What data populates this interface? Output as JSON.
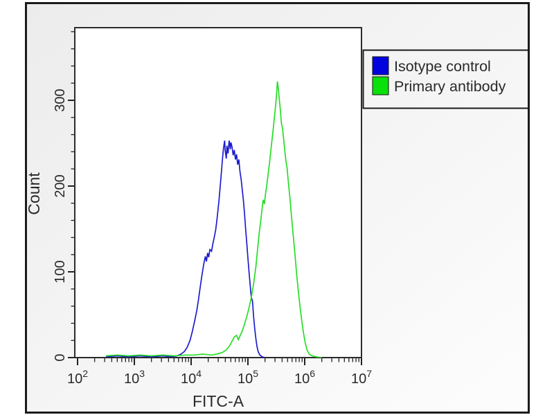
{
  "window": {
    "background_outer": "#ffffff",
    "background_inner_top": "#ececec",
    "background_inner_bottom": "#fdfdfd",
    "frame_color": "#1b1b1b",
    "plot_border_color": "#2b2b2b",
    "text_color": "#2a2a2a"
  },
  "legend": {
    "items": [
      {
        "label": "Isotype control",
        "swatch_color": "#0202df",
        "swatch_icon": "blue-square-swatch"
      },
      {
        "label": "Primary antibody",
        "swatch_color": "#0ae00a",
        "swatch_icon": "green-square-swatch"
      }
    ]
  },
  "chart_data": {
    "type": "line",
    "subtype": "flow-cytometry-overlay-histogram",
    "title": "",
    "xlabel": "FITC-A",
    "ylabel": "Count",
    "x_scale": "log10",
    "xlim_log10": [
      2,
      7
    ],
    "x_tick_label_base": "10",
    "x_tick_exponents": [
      2,
      3,
      4,
      5,
      6,
      7
    ],
    "x_minor_mantissas": [
      2,
      3,
      4,
      5,
      6,
      7,
      8,
      9
    ],
    "ylim": [
      0,
      385
    ],
    "y_major_ticks": [
      0,
      100,
      200,
      300
    ],
    "y_minor_step": 20,
    "grid": false,
    "legend_position": "outside-top-right",
    "series": [
      {
        "name": "Isotype control",
        "color": "#1c1ccd",
        "peak_log10x": 4.6,
        "peak_count": 253,
        "points": [
          [
            2.5,
            1
          ],
          [
            2.7,
            2
          ],
          [
            2.9,
            1
          ],
          [
            3.1,
            2
          ],
          [
            3.3,
            1
          ],
          [
            3.5,
            2
          ],
          [
            3.65,
            1
          ],
          [
            3.75,
            2
          ],
          [
            3.82,
            4
          ],
          [
            3.88,
            7
          ],
          [
            3.93,
            12
          ],
          [
            3.98,
            20
          ],
          [
            4.02,
            30
          ],
          [
            4.06,
            42
          ],
          [
            4.1,
            55
          ],
          [
            4.13,
            68
          ],
          [
            4.16,
            82
          ],
          [
            4.19,
            96
          ],
          [
            4.22,
            108
          ],
          [
            4.25,
            118
          ],
          [
            4.27,
            112
          ],
          [
            4.29,
            122
          ],
          [
            4.31,
            117
          ],
          [
            4.33,
            126
          ],
          [
            4.36,
            124
          ],
          [
            4.38,
            132
          ],
          [
            4.4,
            138
          ],
          [
            4.43,
            148
          ],
          [
            4.45,
            158
          ],
          [
            4.47,
            170
          ],
          [
            4.49,
            183
          ],
          [
            4.51,
            198
          ],
          [
            4.53,
            214
          ],
          [
            4.55,
            230
          ],
          [
            4.57,
            244
          ],
          [
            4.59,
            253
          ],
          [
            4.6,
            241
          ],
          [
            4.62,
            232
          ],
          [
            4.63,
            247
          ],
          [
            4.65,
            238
          ],
          [
            4.67,
            253
          ],
          [
            4.69,
            243
          ],
          [
            4.7,
            251
          ],
          [
            4.72,
            246
          ],
          [
            4.74,
            236
          ],
          [
            4.76,
            242
          ],
          [
            4.78,
            231
          ],
          [
            4.8,
            237
          ],
          [
            4.82,
            225
          ],
          [
            4.84,
            231
          ],
          [
            4.86,
            217
          ],
          [
            4.88,
            208
          ],
          [
            4.9,
            196
          ],
          [
            4.92,
            184
          ],
          [
            4.94,
            168
          ],
          [
            4.96,
            150
          ],
          [
            4.98,
            133
          ],
          [
            5.0,
            116
          ],
          [
            5.02,
            100
          ],
          [
            5.04,
            84
          ],
          [
            5.06,
            70
          ],
          [
            5.08,
            66
          ],
          [
            5.1,
            48
          ],
          [
            5.12,
            34
          ],
          [
            5.14,
            22
          ],
          [
            5.16,
            13
          ],
          [
            5.18,
            7
          ],
          [
            5.21,
            3
          ],
          [
            5.25,
            1
          ],
          [
            5.3,
            0
          ]
        ]
      },
      {
        "name": "Primary antibody",
        "color": "#27dd27",
        "peak_log10x": 5.52,
        "peak_count": 322,
        "points": [
          [
            2.5,
            2
          ],
          [
            2.7,
            3
          ],
          [
            2.9,
            2
          ],
          [
            3.1,
            3
          ],
          [
            3.3,
            2
          ],
          [
            3.5,
            3
          ],
          [
            3.7,
            2
          ],
          [
            3.9,
            3
          ],
          [
            4.05,
            3
          ],
          [
            4.2,
            4
          ],
          [
            4.35,
            3
          ],
          [
            4.45,
            4
          ],
          [
            4.55,
            6
          ],
          [
            4.62,
            9
          ],
          [
            4.68,
            14
          ],
          [
            4.72,
            19
          ],
          [
            4.76,
            24
          ],
          [
            4.8,
            26
          ],
          [
            4.83,
            21
          ],
          [
            4.86,
            25
          ],
          [
            4.9,
            31
          ],
          [
            4.94,
            39
          ],
          [
            4.98,
            48
          ],
          [
            5.02,
            58
          ],
          [
            5.06,
            70
          ],
          [
            5.1,
            86
          ],
          [
            5.14,
            106
          ],
          [
            5.17,
            126
          ],
          [
            5.2,
            146
          ],
          [
            5.23,
            162
          ],
          [
            5.25,
            174
          ],
          [
            5.27,
            184
          ],
          [
            5.29,
            179
          ],
          [
            5.31,
            191
          ],
          [
            5.33,
            200
          ],
          [
            5.35,
            211
          ],
          [
            5.38,
            227
          ],
          [
            5.4,
            239
          ],
          [
            5.42,
            251
          ],
          [
            5.44,
            263
          ],
          [
            5.46,
            276
          ],
          [
            5.48,
            289
          ],
          [
            5.5,
            303
          ],
          [
            5.51,
            313
          ],
          [
            5.52,
            322
          ],
          [
            5.535,
            314
          ],
          [
            5.55,
            303
          ],
          [
            5.57,
            290
          ],
          [
            5.59,
            273
          ],
          [
            5.61,
            267
          ],
          [
            5.63,
            254
          ],
          [
            5.65,
            241
          ],
          [
            5.67,
            229
          ],
          [
            5.69,
            221
          ],
          [
            5.71,
            206
          ],
          [
            5.74,
            186
          ],
          [
            5.77,
            163
          ],
          [
            5.8,
            141
          ],
          [
            5.83,
            119
          ],
          [
            5.86,
            96
          ],
          [
            5.89,
            76
          ],
          [
            5.92,
            58
          ],
          [
            5.95,
            42
          ],
          [
            5.98,
            28
          ],
          [
            6.01,
            17
          ],
          [
            6.04,
            9
          ],
          [
            6.08,
            4
          ],
          [
            6.13,
            2
          ],
          [
            6.2,
            1
          ],
          [
            6.3,
            0
          ]
        ]
      }
    ]
  }
}
